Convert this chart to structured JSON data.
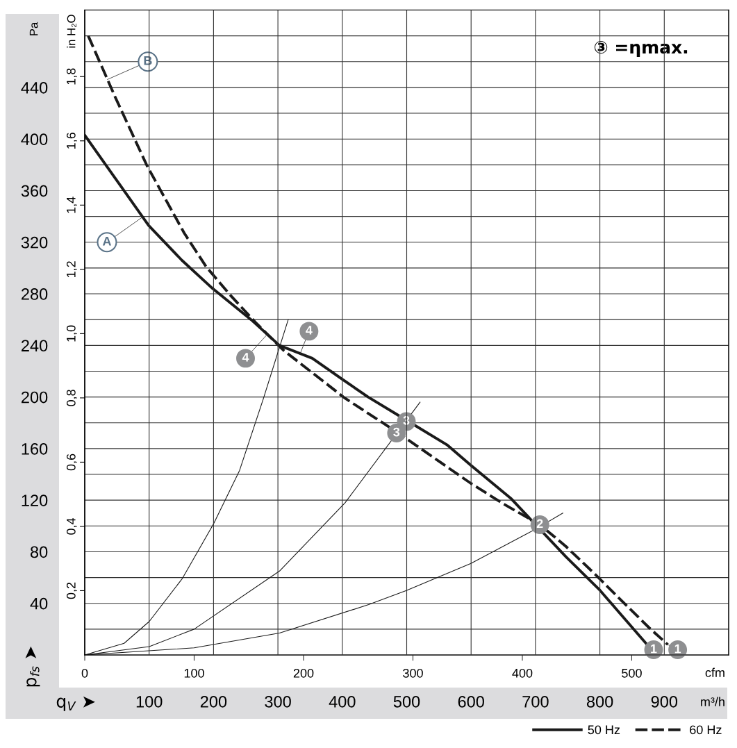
{
  "chart_data": {
    "type": "line",
    "xlabel": "cfm",
    "x2label": "m³/h",
    "ylabel": "Pa",
    "y2label": "in H₂O",
    "xlim": [
      0,
      588.6
    ],
    "xticks": [
      0,
      100,
      200,
      300,
      400,
      500
    ],
    "x2lim": [
      0,
      1000
    ],
    "x2ticks": [
      100,
      200,
      300,
      400,
      500,
      600,
      700,
      800,
      900
    ],
    "ylim": [
      0,
      500
    ],
    "yticks": [
      {
        "value": 20,
        "label": null
      },
      40,
      {
        "value": 60,
        "label": null
      },
      80,
      {
        "value": 100,
        "label": null
      },
      120,
      {
        "value": 140,
        "label": null
      },
      160,
      {
        "value": 180,
        "label": null
      },
      200,
      {
        "value": 220,
        "label": null
      },
      240,
      {
        "value": 260,
        "label": null
      },
      280,
      {
        "value": 300,
        "label": null
      },
      320,
      {
        "value": 340,
        "label": null
      },
      360,
      {
        "value": 380,
        "label": null
      },
      400,
      {
        "value": 420,
        "label": null
      },
      440,
      {
        "value": 460,
        "label": null
      },
      {
        "value": 480,
        "label": null
      }
    ],
    "y2lim": [
      0,
      2.007
    ],
    "y2ticks": [
      {
        "value": 0.2,
        "label": "0,2"
      },
      {
        "value": 0.4,
        "label": "0,4"
      },
      {
        "value": 0.6,
        "label": "0,6"
      },
      {
        "value": 0.8,
        "label": "0,8"
      },
      {
        "value": 1.0,
        "label": "1,0"
      },
      {
        "value": 1.2,
        "label": "1,2"
      },
      {
        "value": 1.4,
        "label": "1,4"
      },
      {
        "value": 1.6,
        "label": "1,6"
      },
      {
        "value": 1.8,
        "label": "1,8"
      }
    ],
    "grid": true,
    "legend": "bottom right",
    "series": [
      {
        "name": "50 Hz",
        "color": "#1a1a1a",
        "line_style": "solid",
        "x": [
          0,
          31.7,
          58.4,
          88.8,
          117,
          152,
          178,
          208,
          235,
          259,
          294,
          331,
          353,
          390,
          411,
          440,
          470,
          513
        ],
        "values": [
          403,
          365,
          333,
          306,
          284,
          260,
          240,
          230,
          214,
          200,
          182,
          163,
          147,
          121,
          102,
          76,
          51,
          9
        ]
      },
      {
        "name": "60 Hz",
        "color": "#1a1a1a",
        "line_style": "dashed",
        "x": [
          3.2,
          27.6,
          57.1,
          91,
          111,
          133,
          157,
          182,
          238,
          285,
          324,
          353,
          383,
          416,
          440,
          466,
          492,
          516,
          533
        ],
        "values": [
          480,
          433,
          379,
          327,
          301,
          279,
          257,
          236,
          199,
          173,
          150,
          133,
          117,
          101,
          84,
          63,
          41,
          21,
          8
        ]
      },
      {
        "color": "#1a1a1a",
        "line_style": "solid",
        "x": [
          0,
          36,
          59,
          89,
          118,
          141.5,
          163,
          186
        ],
        "values": [
          0,
          9,
          26,
          59,
          102,
          143,
          198,
          260
        ]
      },
      {
        "color": "#1a1a1a",
        "line_style": "solid",
        "x": [
          0,
          59,
          100,
          178,
          238,
          306.5
        ],
        "values": [
          0,
          6.5,
          20,
          65,
          118,
          196
        ]
      },
      {
        "color": "#1a1a1a",
        "line_style": "solid",
        "x": [
          0,
          100,
          178,
          259.5,
          294,
          353,
          411,
          437
        ],
        "values": [
          0,
          5.5,
          17,
          39,
          50,
          71,
          97,
          110
        ]
      }
    ],
    "annotations": [
      {
        "text": "1",
        "x": 520,
        "y": 4
      },
      {
        "text": "1",
        "x": 542,
        "y": 4
      },
      {
        "text": "2",
        "x": 416,
        "y": 101
      },
      {
        "text": "3",
        "x": 294,
        "y": 181
      },
      {
        "text": "3",
        "x": 285,
        "y": 172
      },
      {
        "text": "4",
        "x": 205,
        "y": 251
      },
      {
        "text": "4",
        "x": 147,
        "y": 230
      },
      {
        "text": "A",
        "x": 20.3,
        "y": 320
      },
      {
        "text": "B",
        "x": 57.7,
        "y": 460
      },
      "③ =ηmax.",
      "p$_{fs}$ ➤",
      "q$_{V}$ ➤"
    ]
  }
}
